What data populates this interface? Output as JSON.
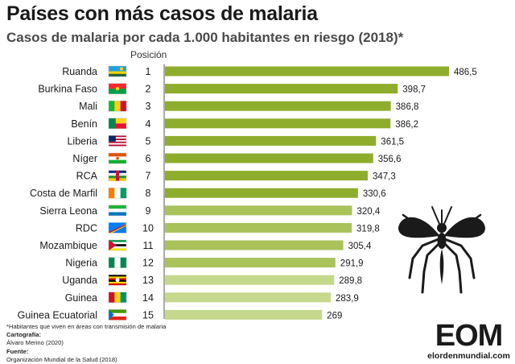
{
  "title": "Países con más casos de malaria",
  "subtitle": "Casos de malaria por cada 1.000 habitantes en riesgo (2018)*",
  "position_header": "Posición",
  "footer": {
    "note": "*Habitantes que viven en áreas con transmisión de malaria",
    "cartography_label": "Cartografía:",
    "cartography_value": "Álvaro Merino (2020)",
    "source_label": "Fuente:",
    "source_value": "Organización Mundial de la Salud (2018)"
  },
  "logo": {
    "letters": "EOM",
    "url": "elordenmundial.com"
  },
  "colors": {
    "bar_dark": "#8fad2c",
    "bar_light": "#c6d88b",
    "text": "#1a1a1a"
  },
  "chart_data": {
    "type": "bar",
    "orientation": "horizontal",
    "categories": [
      "Ruanda",
      "Burkina Faso",
      "Mali",
      "Benín",
      "Liberia",
      "Níger",
      "RCA",
      "Costa de Marfil",
      "Sierra Leona",
      "RDC",
      "Mozambique",
      "Nigeria",
      "Uganda",
      "Guinea",
      "Guinea Ecuatorial"
    ],
    "positions": [
      "1",
      "2",
      "3",
      "4",
      "5",
      "6",
      "7",
      "8",
      "9",
      "10",
      "11",
      "12",
      "13",
      "14",
      "15"
    ],
    "values": [
      486.5,
      398.7,
      386.8,
      386.2,
      361.5,
      356.6,
      347.3,
      330.6,
      320.4,
      319.8,
      305.4,
      291.9,
      289.8,
      283.9,
      269
    ],
    "value_labels": [
      "486,5",
      "398,7",
      "386,8",
      "386,2",
      "361,5",
      "356,6",
      "347,3",
      "330,6",
      "320,4",
      "319,8",
      "305,4",
      "291,9",
      "289,8",
      "283,9",
      "269"
    ],
    "xlim": [
      0,
      486.5
    ],
    "grid": false,
    "legend": "none"
  }
}
